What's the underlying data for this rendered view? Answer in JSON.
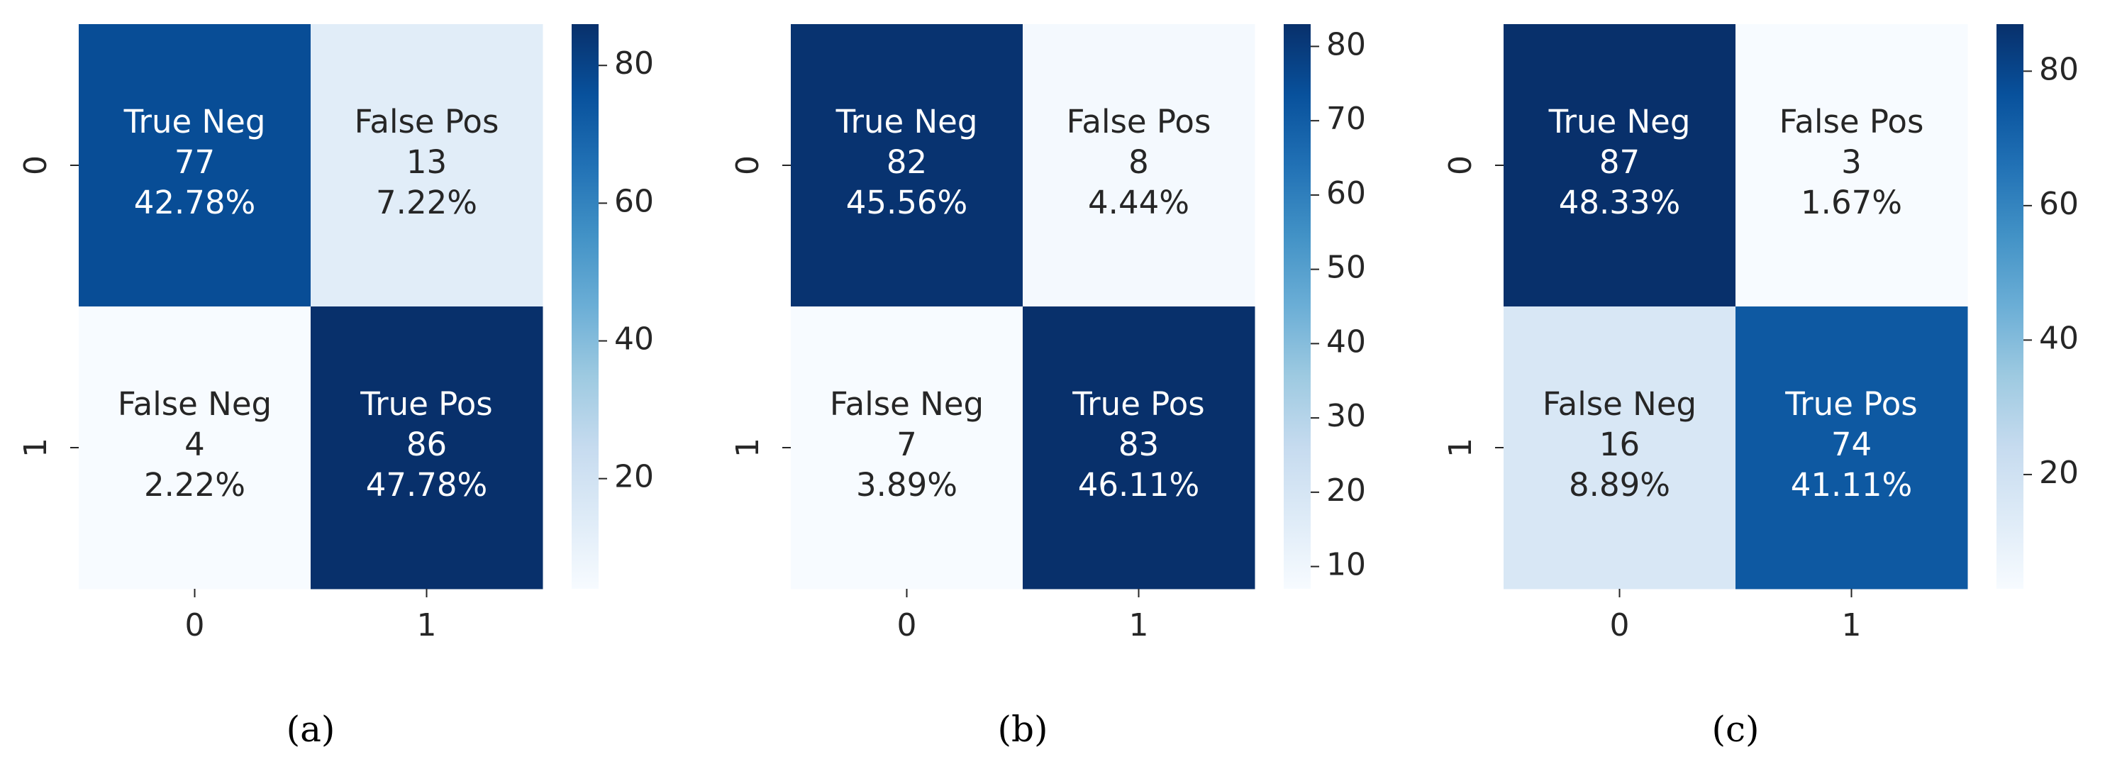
{
  "chart_data": [
    {
      "type": "heatmap",
      "panel_label": "(a)",
      "x_tick_labels": [
        "0",
        "1"
      ],
      "y_tick_labels": [
        "0",
        "1"
      ],
      "cells": [
        [
          {
            "name": "True Neg",
            "count": 77,
            "percent": "42.78%"
          },
          {
            "name": "False Pos",
            "count": 13,
            "percent": "7.22%"
          }
        ],
        [
          {
            "name": "False Neg",
            "count": 4,
            "percent": "2.22%"
          },
          {
            "name": "True Pos",
            "count": 86,
            "percent": "47.78%"
          }
        ]
      ],
      "colorbar": {
        "min": 4,
        "max": 86,
        "ticks": [
          20,
          40,
          60,
          80
        ]
      },
      "colormap": "Blues"
    },
    {
      "type": "heatmap",
      "panel_label": "(b)",
      "x_tick_labels": [
        "0",
        "1"
      ],
      "y_tick_labels": [
        "0",
        "1"
      ],
      "cells": [
        [
          {
            "name": "True Neg",
            "count": 82,
            "percent": "45.56%"
          },
          {
            "name": "False Pos",
            "count": 8,
            "percent": "4.44%"
          }
        ],
        [
          {
            "name": "False Neg",
            "count": 7,
            "percent": "3.89%"
          },
          {
            "name": "True Pos",
            "count": 83,
            "percent": "46.11%"
          }
        ]
      ],
      "colorbar": {
        "min": 7,
        "max": 83,
        "ticks": [
          10,
          20,
          30,
          40,
          50,
          60,
          70,
          80
        ]
      },
      "colormap": "Blues"
    },
    {
      "type": "heatmap",
      "panel_label": "(c)",
      "x_tick_labels": [
        "0",
        "1"
      ],
      "y_tick_labels": [
        "0",
        "1"
      ],
      "cells": [
        [
          {
            "name": "True Neg",
            "count": 87,
            "percent": "48.33%"
          },
          {
            "name": "False Pos",
            "count": 3,
            "percent": "1.67%"
          }
        ],
        [
          {
            "name": "False Neg",
            "count": 16,
            "percent": "8.89%"
          },
          {
            "name": "True Pos",
            "count": 74,
            "percent": "41.11%"
          }
        ]
      ],
      "colorbar": {
        "min": 3,
        "max": 87,
        "ticks": [
          20,
          40,
          60,
          80
        ]
      },
      "colormap": "Blues"
    }
  ]
}
